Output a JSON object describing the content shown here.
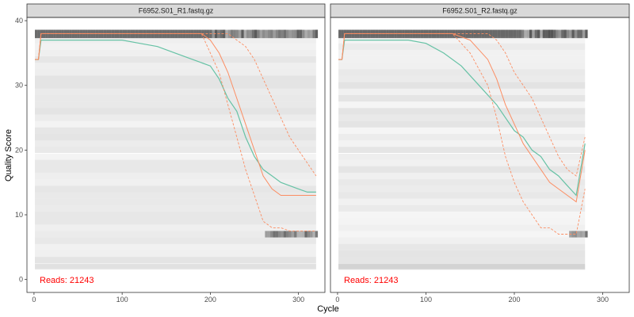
{
  "figure": {
    "ylabel": "Quality Score",
    "xlabel": "Cycle"
  },
  "colors": {
    "mean_line": "#66c2a5",
    "quantile_lines": "#fc8d62",
    "median_line": "#fc8d62",
    "reads_text": "#ff0000",
    "strip_bg": "#d9d9d9",
    "panel_border": "#333333"
  },
  "chart_data": [
    {
      "type": "line",
      "title": "F6952.S01_R1.fastq.gz",
      "reads_label": "Reads:",
      "reads_value": "21243",
      "xlim": [
        -8,
        330
      ],
      "ylim": [
        -2,
        40.5
      ],
      "x_ticks": [
        0,
        100,
        200,
        300
      ],
      "y_ticks": [
        0,
        10,
        20,
        30,
        40
      ],
      "max_cycle": 320,
      "series": [
        {
          "name": "mean",
          "x": [
            1,
            5,
            8,
            20,
            40,
            60,
            80,
            100,
            120,
            140,
            160,
            180,
            200,
            210,
            220,
            230,
            240,
            250,
            260,
            270,
            280,
            290,
            300,
            310,
            320
          ],
          "y": [
            34,
            34,
            37,
            37,
            37,
            37,
            37,
            37,
            36.5,
            36,
            35,
            34,
            33,
            31,
            28,
            26,
            22,
            19,
            17,
            16,
            15,
            14.5,
            14,
            13.5,
            13.5
          ]
        },
        {
          "name": "median",
          "x": [
            1,
            5,
            8,
            40,
            100,
            150,
            190,
            200,
            210,
            220,
            230,
            240,
            250,
            260,
            270,
            280,
            290,
            300,
            310,
            320
          ],
          "y": [
            34,
            34,
            38,
            38,
            38,
            38,
            38,
            37,
            35,
            32,
            28,
            24,
            20,
            16,
            14,
            13,
            13,
            13,
            13,
            13
          ]
        },
        {
          "name": "q25",
          "x": [
            1,
            5,
            8,
            40,
            100,
            150,
            190,
            200,
            210,
            220,
            230,
            240,
            250,
            260,
            270,
            280,
            290,
            300,
            310,
            320
          ],
          "y": [
            34,
            34,
            38,
            38,
            38,
            38,
            38,
            35,
            32,
            27,
            22,
            17,
            13,
            9,
            8,
            8,
            7.5,
            7.5,
            7.5,
            7.5
          ]
        },
        {
          "name": "q75",
          "x": [
            1,
            5,
            8,
            40,
            100,
            150,
            190,
            200,
            210,
            220,
            230,
            240,
            250,
            260,
            270,
            280,
            290,
            300,
            310,
            320
          ],
          "y": [
            34,
            34,
            38,
            38,
            38,
            38,
            38,
            38,
            38,
            38,
            37,
            36,
            34,
            31,
            28,
            25,
            22,
            20,
            18,
            16
          ]
        }
      ]
    },
    {
      "type": "line",
      "title": "F6952.S01_R2.fastq.gz",
      "reads_label": "Reads:",
      "reads_value": "21243",
      "xlim": [
        -8,
        330
      ],
      "ylim": [
        -2,
        40.5
      ],
      "x_ticks": [
        0,
        100,
        200,
        300
      ],
      "y_ticks": [
        0,
        10,
        20,
        30,
        40
      ],
      "max_cycle": 280,
      "series": [
        {
          "name": "mean",
          "x": [
            1,
            5,
            8,
            20,
            40,
            60,
            80,
            100,
            120,
            140,
            160,
            180,
            190,
            200,
            210,
            220,
            230,
            240,
            250,
            260,
            270,
            280
          ],
          "y": [
            34,
            34,
            37,
            37,
            37,
            37,
            37,
            36.5,
            35,
            33,
            30,
            27,
            25,
            23,
            22,
            20,
            19,
            17,
            16,
            14.5,
            13,
            21
          ]
        },
        {
          "name": "median",
          "x": [
            1,
            5,
            8,
            40,
            100,
            130,
            150,
            170,
            180,
            190,
            200,
            210,
            220,
            230,
            240,
            250,
            260,
            270,
            280
          ],
          "y": [
            34,
            34,
            38,
            38,
            38,
            38,
            37,
            34,
            31,
            27,
            24,
            21,
            19,
            17,
            15,
            14,
            13,
            12,
            20
          ]
        },
        {
          "name": "q25",
          "x": [
            1,
            5,
            8,
            40,
            100,
            130,
            150,
            170,
            180,
            190,
            200,
            210,
            220,
            230,
            240,
            250,
            260,
            270,
            280
          ],
          "y": [
            34,
            34,
            38,
            38,
            38,
            38,
            35,
            30,
            25,
            19,
            15,
            12,
            10,
            8,
            8,
            7,
            7,
            7,
            14
          ]
        },
        {
          "name": "q75",
          "x": [
            1,
            5,
            8,
            40,
            100,
            130,
            150,
            170,
            180,
            190,
            200,
            210,
            220,
            230,
            240,
            250,
            260,
            270,
            280
          ],
          "y": [
            34,
            34,
            38,
            38,
            38,
            38,
            38,
            38,
            37,
            35,
            32,
            30,
            28,
            25,
            22,
            19,
            17,
            16,
            22
          ]
        }
      ]
    }
  ]
}
